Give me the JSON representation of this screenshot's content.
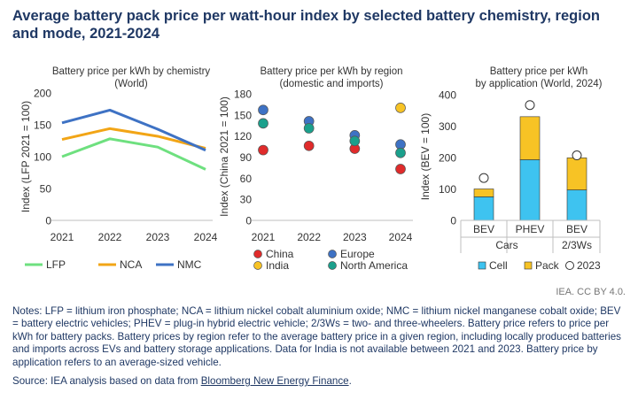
{
  "title": "Average battery pack price per watt-hour index by selected battery chemistry, region and mode, 2021-2024",
  "credit": "IEA. CC BY 4.0.",
  "notes": "Notes: LFP = lithium iron phosphate; NCA = lithium nickel cobalt aluminium oxide; NMC = lithium nickel manganese cobalt oxide; BEV = battery electric vehicles; PHEV = plug-in hybrid electric vehicle; 2/3Ws = two- and three-wheelers. Battery price refers to price per kWh for battery packs. Battery prices by region refer to the average battery price in a given region, including locally produced batteries and imports across EVs and battery storage applications. Data for India is not available between 2021 and 2023. Battery price by application refers to an average-sized vehicle.",
  "source": {
    "prefix": "Source: IEA analysis based on data from ",
    "link": "Bloomberg New Energy Finance",
    "suffix": "."
  },
  "chart_data": [
    {
      "type": "line",
      "title": "Battery price per kWh by chemistry",
      "subtitle": "(World)",
      "ylabel": "Index (LFP 2021 = 100)",
      "x": [
        "2021",
        "2022",
        "2023",
        "2024"
      ],
      "ylim": [
        0,
        200
      ],
      "yticks": [
        0,
        50,
        100,
        150,
        200
      ],
      "grid": false,
      "legend_position": "bottom",
      "series": [
        {
          "name": "LFP",
          "color": "#6ee07f",
          "values": [
            100,
            128,
            115,
            80
          ]
        },
        {
          "name": "NCA",
          "color": "#f2a516",
          "values": [
            127,
            144,
            132,
            113
          ]
        },
        {
          "name": "NMC",
          "color": "#3e72c4",
          "values": [
            153,
            173,
            143,
            110
          ]
        }
      ]
    },
    {
      "type": "scatter",
      "title": "Battery price per kWh by region",
      "subtitle": "(domestic and imports)",
      "ylabel": "Index (China 2021 = 100)",
      "x": [
        "2021",
        "2022",
        "2023",
        "2024"
      ],
      "ylim": [
        0,
        180
      ],
      "yticks": [
        0,
        30,
        60,
        90,
        120,
        150,
        180
      ],
      "grid": false,
      "legend_position": "bottom",
      "series": [
        {
          "name": "China",
          "color": "#e02b2b",
          "values": [
            100,
            106,
            102,
            73
          ]
        },
        {
          "name": "Europe",
          "color": "#3e72c4",
          "values": [
            157,
            141,
            121,
            108
          ]
        },
        {
          "name": "India",
          "color": "#f7c325",
          "values": [
            null,
            null,
            null,
            160
          ]
        },
        {
          "name": "North America",
          "color": "#1ba08c",
          "values": [
            138,
            131,
            113,
            96
          ]
        }
      ]
    },
    {
      "type": "bar",
      "stacked": true,
      "title": "Battery price per kWh",
      "subtitle": "by application (World, 2024)",
      "ylabel": "Index (BEV = 100)",
      "categories": [
        "BEV",
        "PHEV",
        "BEV"
      ],
      "groups": [
        {
          "label": "Cars",
          "categories": [
            "BEV",
            "PHEV"
          ]
        },
        {
          "label": "2/3Ws",
          "categories": [
            "BEV"
          ]
        }
      ],
      "ylim": [
        0,
        400
      ],
      "yticks": [
        0,
        100,
        200,
        300,
        400
      ],
      "grid": false,
      "legend_position": "bottom",
      "series": [
        {
          "name": "Cell",
          "color": "#3ec3f0",
          "values": [
            75,
            193,
            97
          ]
        },
        {
          "name": "Pack",
          "color": "#f7c325",
          "values": [
            25,
            137,
            102
          ]
        }
      ],
      "markers": {
        "name": "2023",
        "color": "#ffffff",
        "values": [
          135,
          367,
          207
        ]
      }
    }
  ]
}
